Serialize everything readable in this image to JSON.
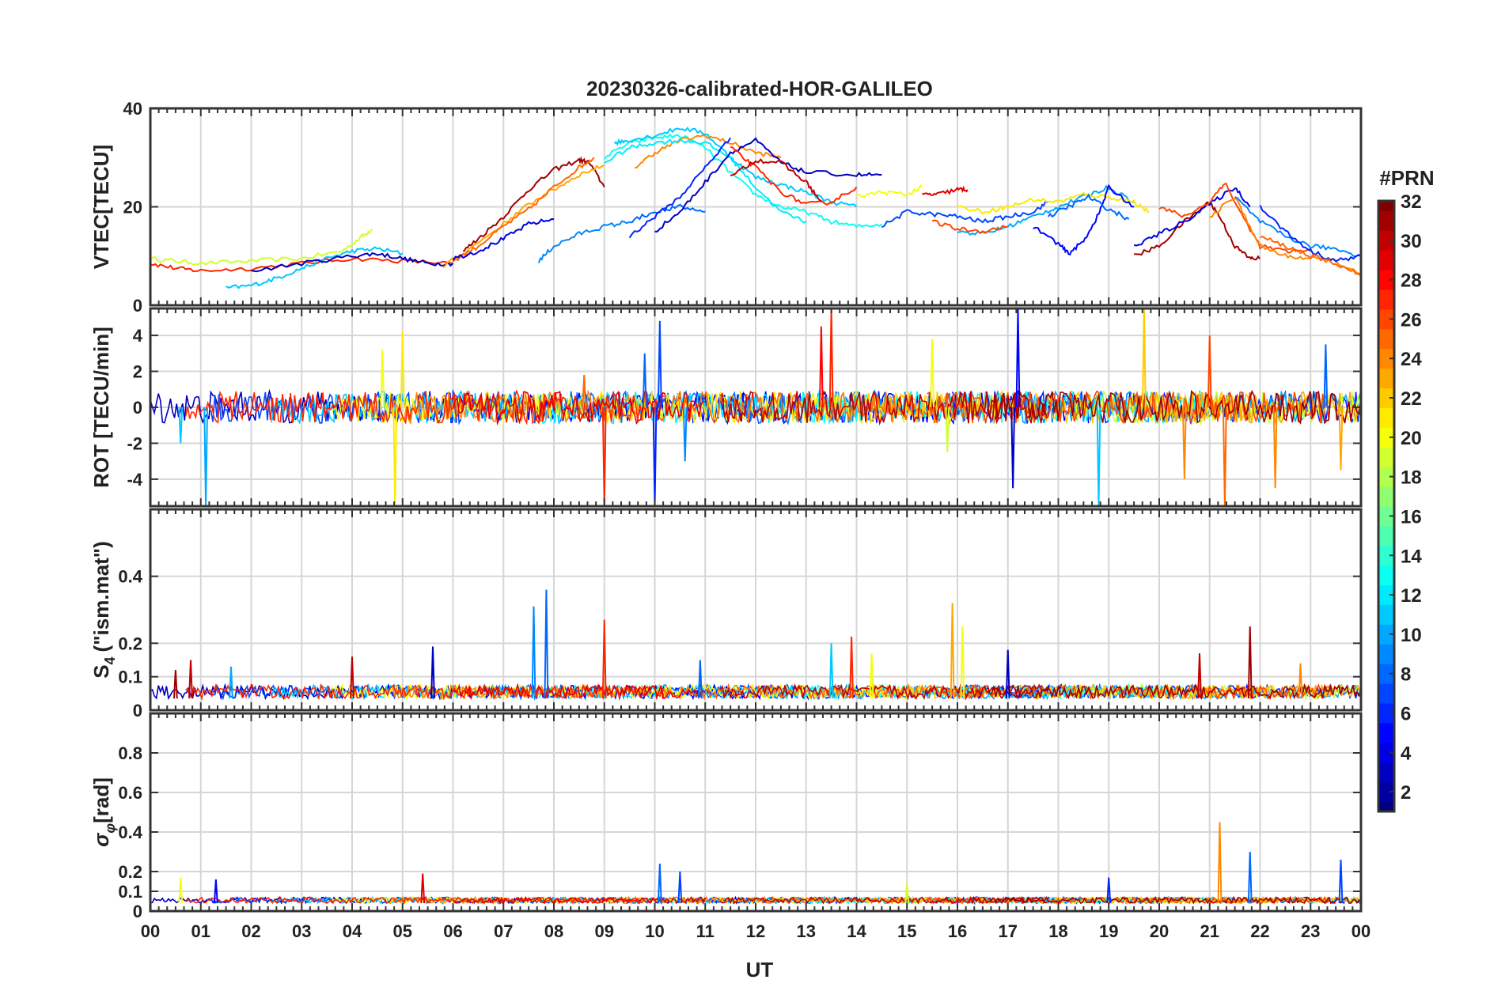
{
  "title": "20230326-calibrated-HOR-GALILEO",
  "xlabel": "UT",
  "x_ticks": [
    "00",
    "01",
    "02",
    "03",
    "04",
    "05",
    "06",
    "07",
    "08",
    "09",
    "10",
    "11",
    "12",
    "13",
    "14",
    "15",
    "16",
    "17",
    "18",
    "19",
    "20",
    "21",
    "22",
    "23",
    "00"
  ],
  "colorbar": {
    "label": "#PRN",
    "min": 1,
    "max": 32,
    "ticks": [
      2,
      4,
      6,
      8,
      10,
      12,
      14,
      16,
      18,
      20,
      22,
      24,
      26,
      28,
      30,
      32
    ],
    "colormap": "jet"
  },
  "chart_data": [
    {
      "type": "line",
      "name": "vtec",
      "ylabel": "VTEC[TECU]",
      "ylim": [
        0,
        40
      ],
      "yticks": [
        0,
        20,
        40
      ],
      "xlim": [
        0,
        24
      ],
      "grid": true,
      "series": [
        {
          "prn": 19,
          "x": [
            0.0,
            0.5,
            1.0,
            2.0,
            3.0,
            3.8,
            4.2,
            4.4
          ],
          "y": [
            9.5,
            9.0,
            8.5,
            9.0,
            9.5,
            11.0,
            14.0,
            15.5
          ]
        },
        {
          "prn": 27,
          "x": [
            0.0,
            0.5,
            1.0,
            2.0,
            3.0,
            4.0,
            5.0,
            6.0
          ],
          "y": [
            8.5,
            7.5,
            7.0,
            7.5,
            8.5,
            9.5,
            9.0,
            8.5
          ]
        },
        {
          "prn": 11,
          "x": [
            1.5,
            2.0,
            2.5,
            3.0,
            3.5,
            4.0,
            4.5,
            5.0
          ],
          "y": [
            3.5,
            4.0,
            5.5,
            7.5,
            9.5,
            11.0,
            11.5,
            10.5
          ]
        },
        {
          "prn": 3,
          "x": [
            2.0,
            3.0,
            4.0,
            4.5,
            5.0,
            5.5,
            6.0
          ],
          "y": [
            7.0,
            8.5,
            10.0,
            10.5,
            9.5,
            8.5,
            8.5
          ]
        },
        {
          "prn": 31,
          "x": [
            6.2,
            6.5,
            7.0,
            7.5,
            8.0,
            8.5,
            8.7,
            9.0
          ],
          "y": [
            11.0,
            13.5,
            18.0,
            23.5,
            27.5,
            29.5,
            29.0,
            24.0
          ]
        },
        {
          "prn": 23,
          "x": [
            5.8,
            6.2,
            7.0,
            7.5,
            8.0,
            8.5,
            9.0
          ],
          "y": [
            8.0,
            10.5,
            16.5,
            20.5,
            23.5,
            26.5,
            28.5
          ]
        },
        {
          "prn": 25,
          "x": [
            6.0,
            6.5,
            7.0,
            7.5,
            8.0,
            8.5,
            8.8
          ],
          "y": [
            9.0,
            12.0,
            16.0,
            19.5,
            24.0,
            28.0,
            30.0
          ]
        },
        {
          "prn": 4,
          "x": [
            6.0,
            6.5,
            7.0,
            7.5,
            8.0
          ],
          "y": [
            9.5,
            11.0,
            13.5,
            16.5,
            17.5
          ]
        },
        {
          "prn": 9,
          "x": [
            7.7,
            8.0,
            8.5,
            9.0,
            9.5
          ],
          "y": [
            9.0,
            12.0,
            14.5,
            16.0,
            17.0
          ]
        },
        {
          "prn": 13,
          "x": [
            9.0,
            9.5,
            10.0,
            10.5,
            11.0,
            11.5,
            12.0,
            12.5,
            13.0,
            13.5,
            14.0,
            14.5
          ],
          "y": [
            30.0,
            33.0,
            34.0,
            34.5,
            32.0,
            27.0,
            22.5,
            20.0,
            19.0,
            17.0,
            16.0,
            16.5
          ]
        },
        {
          "prn": 11,
          "x": [
            9.2,
            9.5,
            10.0,
            10.5,
            11.0,
            11.5,
            12.0,
            12.5,
            13.0,
            13.5,
            14.0
          ],
          "y": [
            33.0,
            33.5,
            34.5,
            36.0,
            35.0,
            30.0,
            26.0,
            24.5,
            23.0,
            21.0,
            20.0
          ]
        },
        {
          "prn": 24,
          "x": [
            9.6,
            10.0,
            10.5,
            11.0,
            11.5,
            12.0,
            12.5
          ],
          "y": [
            28.0,
            31.0,
            33.5,
            34.5,
            33.0,
            31.0,
            30.0
          ]
        },
        {
          "prn": 12,
          "x": [
            9.0,
            9.5,
            10.0,
            10.5,
            11.0,
            11.5,
            12.0,
            12.5,
            13.0
          ],
          "y": [
            29.0,
            32.0,
            33.0,
            33.5,
            33.0,
            30.0,
            24.0,
            19.0,
            17.0
          ]
        },
        {
          "prn": 8,
          "x": [
            9.5,
            10.0,
            10.5,
            11.0
          ],
          "y": [
            17.0,
            19.0,
            20.0,
            19.0
          ]
        },
        {
          "prn": 6,
          "x": [
            9.5,
            10.0,
            10.5,
            11.0,
            11.5
          ],
          "y": [
            14.0,
            18.0,
            22.0,
            28.0,
            34.0
          ]
        },
        {
          "prn": 3,
          "x": [
            10.0,
            10.5,
            11.0,
            11.5,
            12.0,
            12.5,
            13.0,
            14.0,
            14.5
          ],
          "y": [
            15.0,
            19.0,
            25.0,
            31.0,
            33.5,
            29.0,
            27.0,
            26.5,
            26.5
          ]
        },
        {
          "prn": 27,
          "x": [
            11.5,
            12.0,
            12.5,
            13.0,
            13.5,
            14.0
          ],
          "y": [
            32.0,
            28.0,
            23.0,
            20.5,
            21.0,
            24.0
          ]
        },
        {
          "prn": 30,
          "x": [
            11.5,
            12.0,
            12.5,
            13.0,
            13.3
          ],
          "y": [
            26.0,
            29.5,
            29.0,
            25.0,
            21.0
          ]
        },
        {
          "prn": 20,
          "x": [
            14.0,
            14.5,
            15.0,
            15.3
          ],
          "y": [
            22.0,
            23.0,
            22.5,
            24.0
          ]
        },
        {
          "prn": 29,
          "x": [
            15.3,
            15.6,
            16.0,
            16.2
          ],
          "y": [
            22.5,
            22.5,
            23.5,
            23.5
          ]
        },
        {
          "prn": 7,
          "x": [
            14.5,
            15.0,
            15.5,
            16.0,
            16.5,
            17.0,
            17.5,
            17.8
          ],
          "y": [
            16.0,
            19.0,
            18.5,
            18.0,
            17.0,
            18.0,
            19.0,
            21.0
          ]
        },
        {
          "prn": 10,
          "x": [
            16.0,
            16.5,
            17.0,
            17.5,
            18.0,
            18.5,
            19.0,
            19.5
          ],
          "y": [
            15.0,
            14.5,
            16.0,
            18.0,
            20.0,
            22.0,
            24.0,
            21.0
          ]
        },
        {
          "prn": 21,
          "x": [
            16.0,
            16.5,
            17.0,
            17.5,
            18.0,
            18.5,
            19.0,
            19.5,
            19.8
          ],
          "y": [
            20.0,
            19.0,
            20.0,
            21.5,
            21.0,
            22.5,
            22.0,
            21.0,
            19.0
          ]
        },
        {
          "prn": 26,
          "x": [
            15.5,
            16.0,
            16.5,
            17.0
          ],
          "y": [
            17.0,
            15.5,
            15.0,
            16.0
          ]
        },
        {
          "prn": 5,
          "x": [
            17.5,
            18.0,
            18.2,
            18.5,
            18.8,
            19.0,
            19.5
          ],
          "y": [
            16.0,
            12.5,
            10.5,
            13.0,
            18.5,
            24.0,
            20.0
          ]
        },
        {
          "prn": 8,
          "x": [
            17.8,
            18.2,
            18.6,
            19.0,
            19.4
          ],
          "y": [
            18.0,
            20.0,
            22.0,
            19.5,
            17.5
          ]
        },
        {
          "prn": 31,
          "x": [
            19.5,
            20.0,
            20.5,
            21.0,
            21.2,
            21.5,
            21.8,
            22.0
          ],
          "y": [
            10.0,
            12.0,
            17.0,
            21.0,
            18.0,
            12.0,
            9.5,
            9.5
          ]
        },
        {
          "prn": 4,
          "x": [
            19.5,
            20.0,
            20.5,
            21.0,
            21.5,
            21.8
          ],
          "y": [
            12.0,
            14.5,
            17.0,
            20.5,
            24.0,
            20.0
          ]
        },
        {
          "prn": 26,
          "x": [
            20.0,
            20.5,
            21.0,
            21.3,
            21.6,
            22.0,
            22.5,
            23.0
          ],
          "y": [
            20.0,
            18.0,
            21.0,
            25.0,
            19.0,
            12.0,
            11.0,
            11.0
          ]
        },
        {
          "prn": 24,
          "x": [
            21.0,
            21.5,
            22.0,
            22.5,
            23.0,
            23.5,
            24.0
          ],
          "y": [
            18.0,
            22.0,
            12.0,
            10.0,
            9.5,
            9.0,
            6.0
          ]
        },
        {
          "prn": 9,
          "x": [
            21.5,
            22.0,
            22.5,
            23.0,
            23.5,
            24.0
          ],
          "y": [
            22.0,
            17.0,
            14.0,
            12.0,
            11.5,
            10.0
          ]
        },
        {
          "prn": 6,
          "x": [
            22.0,
            22.5,
            23.0,
            23.5,
            24.0
          ],
          "y": [
            20.0,
            15.0,
            11.0,
            9.0,
            10.0
          ]
        },
        {
          "prn": 25,
          "x": [
            22.0,
            22.5,
            23.0,
            23.5,
            24.0
          ],
          "y": [
            14.0,
            12.0,
            10.0,
            8.5,
            6.0
          ]
        }
      ]
    },
    {
      "type": "line",
      "name": "rot",
      "ylabel": "ROT [TECU/min]",
      "ylim": [
        -5.5,
        5.5
      ],
      "yticks": [
        -4,
        -2,
        0,
        2,
        4
      ],
      "xlim": [
        0,
        24
      ],
      "grid": true,
      "spikes": [
        {
          "prn": 11,
          "x": 0.6,
          "y": -2.0
        },
        {
          "prn": 10,
          "x": 1.1,
          "y": -5.5
        },
        {
          "prn": 20,
          "x": 4.6,
          "y": 3.2
        },
        {
          "prn": 21,
          "x": 4.85,
          "y": -5.5
        },
        {
          "prn": 21,
          "x": 5.0,
          "y": 4.2
        },
        {
          "prn": 25,
          "x": 8.6,
          "y": 1.8
        },
        {
          "prn": 27,
          "x": 9.0,
          "y": -5.5
        },
        {
          "prn": 8,
          "x": 9.8,
          "y": 3.0
        },
        {
          "prn": 6,
          "x": 10.0,
          "y": -5.5
        },
        {
          "prn": 7,
          "x": 10.1,
          "y": 4.8
        },
        {
          "prn": 9,
          "x": 10.6,
          "y": -3.0
        },
        {
          "prn": 28,
          "x": 13.3,
          "y": 4.5
        },
        {
          "prn": 27,
          "x": 13.5,
          "y": 5.5
        },
        {
          "prn": 20,
          "x": 15.5,
          "y": 3.8
        },
        {
          "prn": 19,
          "x": 15.8,
          "y": -2.5
        },
        {
          "prn": 5,
          "x": 17.2,
          "y": 5.5
        },
        {
          "prn": 3,
          "x": 17.1,
          "y": -4.5
        },
        {
          "prn": 11,
          "x": 18.8,
          "y": -5.5
        },
        {
          "prn": 22,
          "x": 19.7,
          "y": 5.5
        },
        {
          "prn": 24,
          "x": 20.5,
          "y": -4.0
        },
        {
          "prn": 26,
          "x": 21.0,
          "y": 4.0
        },
        {
          "prn": 25,
          "x": 21.3,
          "y": -5.5
        },
        {
          "prn": 24,
          "x": 22.3,
          "y": -4.5
        },
        {
          "prn": 8,
          "x": 23.3,
          "y": 3.5
        },
        {
          "prn": 23,
          "x": 23.6,
          "y": -3.5
        }
      ]
    },
    {
      "type": "line",
      "name": "s4",
      "ylabel": "S4 (\"ism.mat\")",
      "ylim": [
        0,
        0.6
      ],
      "yticks": [
        0,
        0.1,
        0.2,
        0.4
      ],
      "xlim": [
        0,
        24
      ],
      "grid": true,
      "spikes": [
        {
          "prn": 31,
          "x": 0.5,
          "y": 0.12
        },
        {
          "prn": 30,
          "x": 0.8,
          "y": 0.15
        },
        {
          "prn": 10,
          "x": 1.6,
          "y": 0.13
        },
        {
          "prn": 30,
          "x": 4.0,
          "y": 0.16
        },
        {
          "prn": 3,
          "x": 5.6,
          "y": 0.19
        },
        {
          "prn": 9,
          "x": 7.6,
          "y": 0.31
        },
        {
          "prn": 8,
          "x": 7.85,
          "y": 0.36
        },
        {
          "prn": 27,
          "x": 9.0,
          "y": 0.27
        },
        {
          "prn": 8,
          "x": 10.9,
          "y": 0.15
        },
        {
          "prn": 11,
          "x": 13.5,
          "y": 0.2
        },
        {
          "prn": 27,
          "x": 13.9,
          "y": 0.22
        },
        {
          "prn": 20,
          "x": 14.3,
          "y": 0.17
        },
        {
          "prn": 23,
          "x": 15.9,
          "y": 0.32
        },
        {
          "prn": 20,
          "x": 16.1,
          "y": 0.25
        },
        {
          "prn": 3,
          "x": 17.0,
          "y": 0.18
        },
        {
          "prn": 30,
          "x": 20.8,
          "y": 0.17
        },
        {
          "prn": 31,
          "x": 21.8,
          "y": 0.25
        },
        {
          "prn": 24,
          "x": 22.8,
          "y": 0.14
        }
      ]
    },
    {
      "type": "line",
      "name": "sigma_phi",
      "ylabel": "σφ[rad]",
      "ylim": [
        0,
        1.0
      ],
      "yticks": [
        0,
        0.1,
        0.2,
        0.4,
        0.6,
        0.8
      ],
      "xlim": [
        0,
        24
      ],
      "grid": true,
      "spikes": [
        {
          "prn": 20,
          "x": 0.6,
          "y": 0.17
        },
        {
          "prn": 5,
          "x": 1.3,
          "y": 0.16
        },
        {
          "prn": 29,
          "x": 5.4,
          "y": 0.19
        },
        {
          "prn": 8,
          "x": 10.1,
          "y": 0.24
        },
        {
          "prn": 7,
          "x": 10.5,
          "y": 0.2
        },
        {
          "prn": 19,
          "x": 15.0,
          "y": 0.14
        },
        {
          "prn": 6,
          "x": 19.0,
          "y": 0.17
        },
        {
          "prn": 24,
          "x": 21.2,
          "y": 0.45
        },
        {
          "prn": 8,
          "x": 21.8,
          "y": 0.3
        },
        {
          "prn": 7,
          "x": 23.6,
          "y": 0.26
        }
      ]
    }
  ]
}
